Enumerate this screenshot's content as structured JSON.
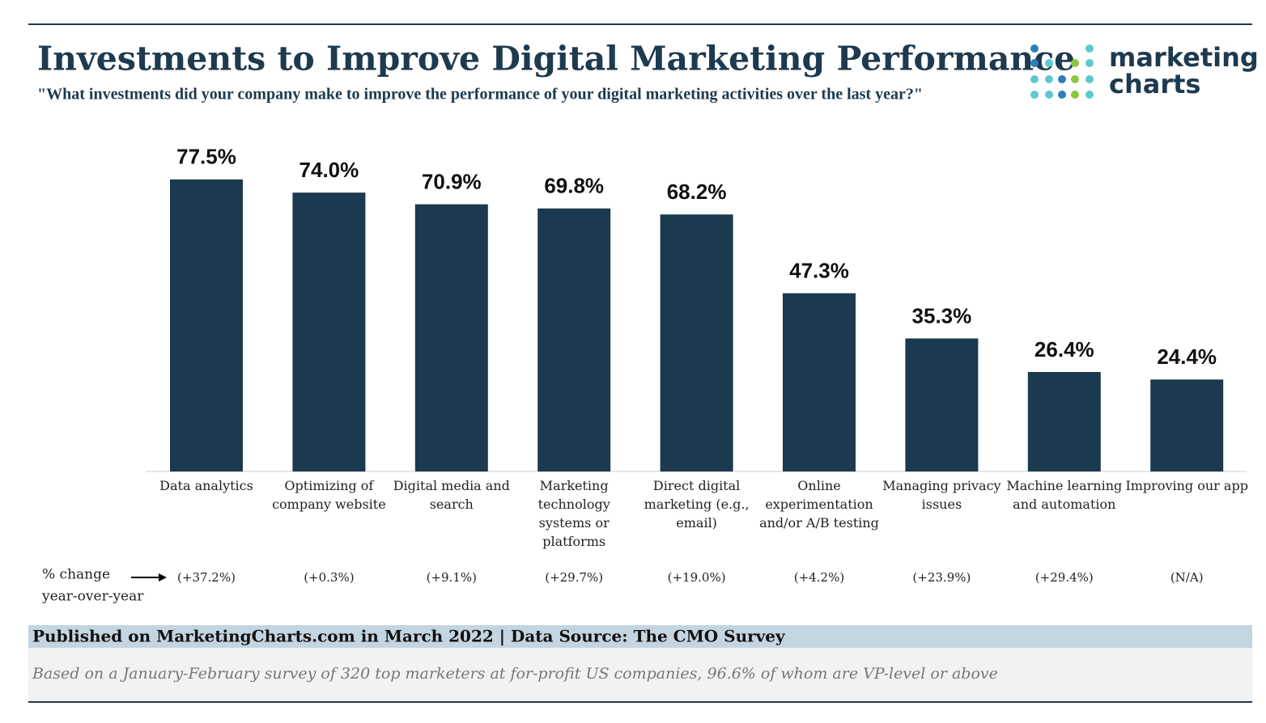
{
  "chart_data": {
    "type": "bar",
    "title": "Investments to Improve Digital Marketing Performance",
    "subtitle": "\"What investments did your company make to improve the performance of your digital marketing activities over the last year?\"",
    "logo_text": [
      "marketing",
      "charts"
    ],
    "categories": [
      "Data analytics",
      "Optimizing of company website",
      "Digital media and search",
      "Marketing technology systems or platforms",
      "Direct digital marketing (e.g., email)",
      "Online experimentation and/or A/B testing",
      "Managing privacy issues",
      "Machine learning and automation",
      "Improving our app"
    ],
    "values": [
      77.5,
      74.0,
      70.9,
      69.8,
      68.2,
      47.3,
      35.3,
      26.4,
      24.4
    ],
    "value_labels": [
      "77.5%",
      "74.0%",
      "70.9%",
      "69.8%",
      "68.2%",
      "47.3%",
      "35.3%",
      "26.4%",
      "24.4%"
    ],
    "color": "#1b3a4f",
    "change_label": [
      "% change",
      "year-over-year"
    ],
    "changes": [
      "(+37.2%)",
      "(+0.3%)",
      "(+9.1%)",
      "(+29.7%)",
      "(+19.0%)",
      "(+4.2%)",
      "(+23.9%)",
      "(+29.4%)",
      "(N/A)"
    ],
    "source": "Published on MarketingCharts.com in March 2022 | Data Source: The CMO Survey",
    "note": "Based on a January-February survey of 320 top marketers at for-profit US companies, 96.6% of whom are VP-level or above"
  }
}
